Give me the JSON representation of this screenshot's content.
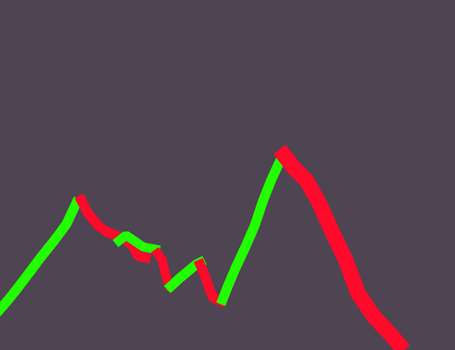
{
  "scene": {
    "background_color": "#4f4452",
    "line_colors": {
      "rising": "#22ff00",
      "falling": "#ff0a2a"
    },
    "segment_sequence": [
      "rising",
      "falling",
      "rising",
      "falling",
      "rising",
      "falling",
      "rising",
      "falling"
    ]
  }
}
